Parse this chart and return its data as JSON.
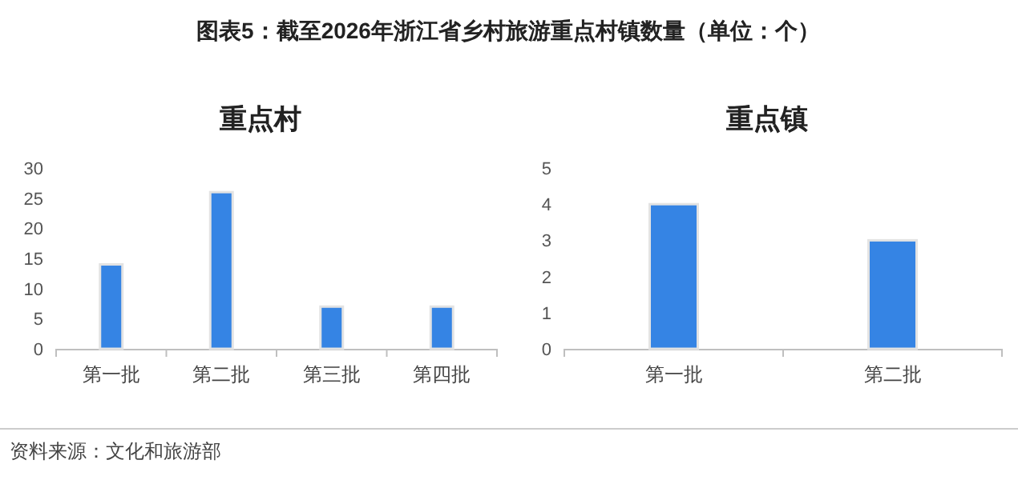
{
  "chart_data": [
    {
      "type": "bar",
      "title": "重点村",
      "categories": [
        "第一批",
        "第二批",
        "第三批",
        "第四批"
      ],
      "values": [
        14,
        26,
        7,
        7
      ],
      "color": "#3584e4",
      "ylim": [
        0,
        30
      ],
      "yticks": [
        0,
        5,
        10,
        15,
        20,
        25,
        30
      ],
      "annotations": [
        "图表5：截至2026年浙江省乡村旅游重点村镇数量（单位：个）",
        "资料来源：文化和旅游部"
      ]
    },
    {
      "type": "bar",
      "title": "重点镇",
      "categories": [
        "第一批",
        "第二批"
      ],
      "values": [
        4,
        3
      ],
      "color": "#3584e4",
      "ylim": [
        0,
        5
      ],
      "yticks": [
        0,
        1,
        2,
        3,
        4,
        5
      ]
    }
  ]
}
